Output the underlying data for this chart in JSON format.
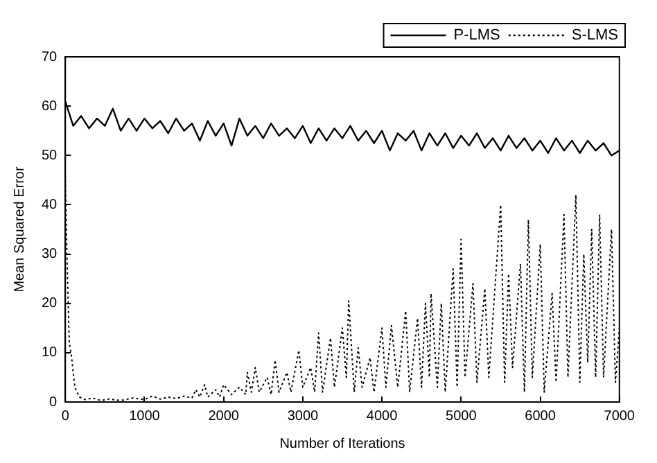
{
  "chart_data": {
    "type": "line",
    "xlabel": "Number of Iterations",
    "ylabel": "Mean Squared Error",
    "xlim": [
      0,
      7000
    ],
    "ylim": [
      0,
      70
    ],
    "xticks": [
      0,
      1000,
      2000,
      3000,
      4000,
      5000,
      6000,
      7000
    ],
    "yticks": [
      0,
      10,
      20,
      30,
      40,
      50,
      60,
      70
    ],
    "grid": false,
    "legend": "top right",
    "marker": "none",
    "series": [
      {
        "name": "P-LMS",
        "color": "#000000",
        "line_style": "solid",
        "x": [
          0,
          100,
          200,
          300,
          400,
          500,
          600,
          700,
          800,
          900,
          1000,
          1100,
          1200,
          1300,
          1400,
          1500,
          1600,
          1700,
          1800,
          1900,
          2000,
          2100,
          2200,
          2300,
          2400,
          2500,
          2600,
          2700,
          2800,
          2900,
          3000,
          3100,
          3200,
          3300,
          3400,
          3500,
          3600,
          3700,
          3800,
          3900,
          4000,
          4100,
          4200,
          4300,
          4400,
          4500,
          4600,
          4700,
          4800,
          4900,
          5000,
          5100,
          5200,
          5300,
          5400,
          5500,
          5600,
          5700,
          5800,
          5900,
          6000,
          6100,
          6200,
          6300,
          6400,
          6500,
          6600,
          6700,
          6800,
          6900,
          7000
        ],
        "values": [
          61,
          56,
          58,
          55.5,
          57.5,
          56,
          59.5,
          55,
          57.5,
          55,
          57.5,
          55.5,
          57,
          54.5,
          57.5,
          55,
          56.5,
          53,
          57,
          54,
          56.5,
          52,
          57.5,
          54,
          56,
          53.5,
          56.5,
          54,
          55.5,
          53.5,
          56,
          52.5,
          55.5,
          53,
          55.5,
          53.5,
          56,
          53,
          55,
          52.5,
          55,
          51,
          54.5,
          53,
          55,
          51,
          54.5,
          52,
          54.5,
          51.5,
          54,
          52,
          54.5,
          51.5,
          53.5,
          51,
          54,
          51.5,
          53.5,
          51,
          53,
          50.5,
          53.5,
          51,
          53,
          50.5,
          53,
          51,
          52.5,
          50,
          51
        ]
      },
      {
        "name": "S-LMS",
        "color": "#000000",
        "line_style": "dotted",
        "x": [
          0,
          20,
          50,
          80,
          120,
          180,
          250,
          350,
          450,
          550,
          700,
          850,
          1000,
          1100,
          1200,
          1300,
          1400,
          1500,
          1600,
          1650,
          1700,
          1760,
          1800,
          1900,
          1950,
          2000,
          2100,
          2200,
          2280,
          2300,
          2350,
          2400,
          2450,
          2550,
          2600,
          2650,
          2700,
          2800,
          2850,
          2950,
          3000,
          3100,
          3150,
          3200,
          3250,
          3350,
          3400,
          3500,
          3550,
          3580,
          3650,
          3700,
          3750,
          3850,
          3900,
          4000,
          4050,
          4120,
          4200,
          4300,
          4350,
          4450,
          4500,
          4550,
          4600,
          4620,
          4700,
          4750,
          4800,
          4900,
          4950,
          5000,
          5050,
          5150,
          5200,
          5300,
          5350,
          5500,
          5550,
          5600,
          5650,
          5750,
          5800,
          5850,
          5900,
          6000,
          6050,
          6150,
          6200,
          6300,
          6350,
          6450,
          6500,
          6550,
          6600,
          6650,
          6700,
          6750,
          6800,
          6900,
          6950,
          7000
        ],
        "values": [
          45,
          30,
          12,
          9,
          3,
          1,
          0.5,
          0.8,
          0.3,
          0.6,
          0.3,
          0.8,
          0.5,
          1.2,
          0.6,
          1,
          0.7,
          1.2,
          0.8,
          2.5,
          1,
          3.5,
          1,
          2.5,
          1,
          3.5,
          1.5,
          3,
          1.5,
          6,
          2,
          7,
          2,
          5,
          1.5,
          8.5,
          2,
          6,
          2,
          10.5,
          3,
          7,
          2,
          14,
          2,
          13,
          3,
          15,
          5,
          20.5,
          2,
          11,
          3,
          9,
          2,
          15,
          3,
          15.5,
          3,
          18.5,
          2,
          17,
          3,
          20,
          5,
          22,
          3,
          20,
          2,
          27,
          3,
          33,
          5,
          24,
          4,
          23,
          5,
          40,
          4,
          26,
          7,
          28,
          2,
          37,
          5,
          32,
          2,
          22,
          4,
          38,
          5,
          42,
          4,
          30,
          8,
          35,
          5,
          38,
          5,
          35,
          4,
          15
        ]
      }
    ]
  }
}
